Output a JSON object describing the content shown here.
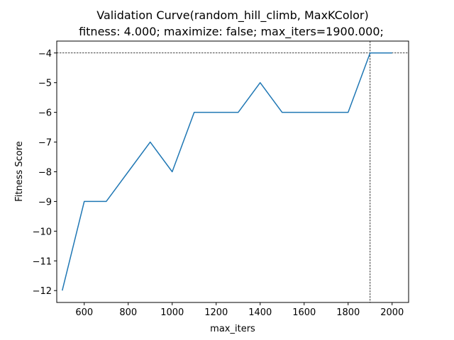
{
  "chart_data": {
    "type": "line",
    "title": "Validation Curve(random_hill_climb, MaxKColor)",
    "subtitle": "fitness: 4.000; maximize: false; max_iters=1900.000;",
    "xlabel": "max_iters",
    "ylabel": "Fitness Score",
    "xlim": [
      475,
      2075
    ],
    "ylim": [
      -12.4,
      -3.6
    ],
    "xticks": [
      600,
      800,
      1000,
      1200,
      1400,
      1600,
      1800,
      2000
    ],
    "yticks": [
      -12,
      -11,
      -10,
      -9,
      -8,
      -7,
      -6,
      -5,
      -4
    ],
    "grid": false,
    "series": [
      {
        "x": [
          500,
          600,
          700,
          800,
          900,
          1000,
          1100,
          1200,
          1300,
          1400,
          1500,
          1600,
          1700,
          1800,
          1900,
          2000
        ],
        "y": [
          -12,
          -9,
          -9,
          -8,
          -7,
          -8,
          -6,
          -6,
          -6,
          -5,
          -6,
          -6,
          -6,
          -6,
          -4,
          -4
        ],
        "color": "#1f77b4"
      }
    ],
    "reference_lines": {
      "horizontal_y": -4,
      "vertical_x": 1900,
      "style": "dashed",
      "color": "#000000"
    }
  }
}
